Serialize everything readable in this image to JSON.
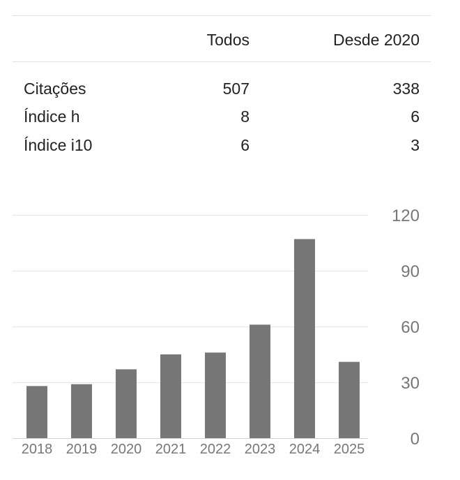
{
  "stats_table": {
    "headers": {
      "all": "Todos",
      "since": "Desde 2020"
    },
    "rows": [
      {
        "label": "Citações",
        "all": "507",
        "since": "338"
      },
      {
        "label": "Índice h",
        "all": "8",
        "since": "6"
      },
      {
        "label": "Índice i10",
        "all": "6",
        "since": "3"
      }
    ]
  },
  "chart_data": {
    "type": "bar",
    "categories": [
      "2018",
      "2019",
      "2020",
      "2021",
      "2022",
      "2023",
      "2024",
      "2025"
    ],
    "values": [
      28,
      29,
      37,
      45,
      46,
      61,
      107,
      41
    ],
    "ylim": [
      0,
      120
    ],
    "yticks": [
      0,
      30,
      60,
      90,
      120
    ],
    "y_axis_side": "right",
    "grid": true,
    "bar_color": "#777777",
    "grid_color": "#e6e6e6",
    "tick_label_color": "#777777"
  }
}
